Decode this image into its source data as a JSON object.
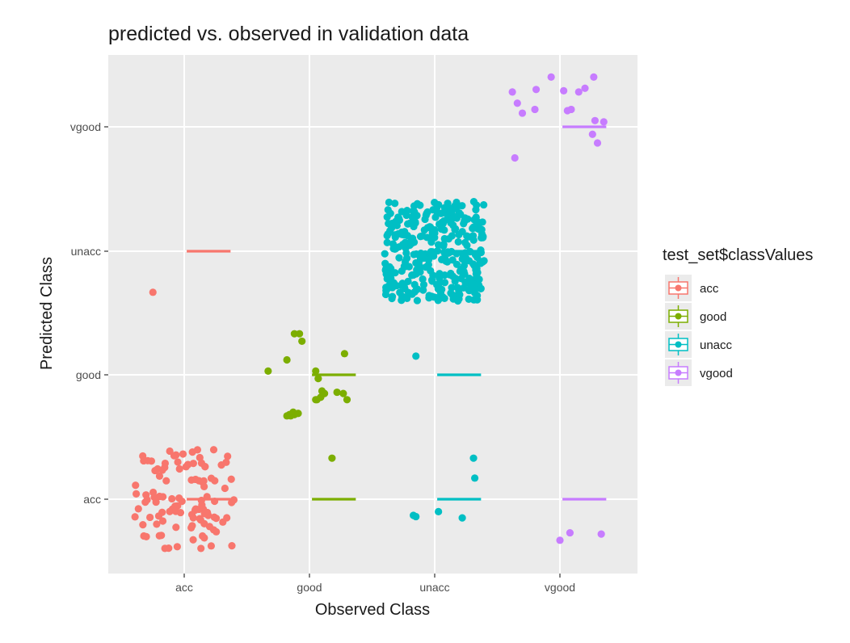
{
  "chart_data": {
    "type": "scatter",
    "title": "predicted vs. observed in validation data",
    "xlabel": "Observed Class",
    "ylabel": "Predicted Class",
    "categories_x": [
      "acc",
      "good",
      "unacc",
      "vgood"
    ],
    "categories_y": [
      "acc",
      "good",
      "unacc",
      "vgood"
    ],
    "legend": {
      "title": "test_set$classValues",
      "placement": "right",
      "entries": [
        "acc",
        "good",
        "unacc",
        "vgood"
      ]
    },
    "colors": {
      "acc": "#F8766D",
      "good": "#7CAE00",
      "unacc": "#00BFC4",
      "vgood": "#C77CFF"
    },
    "grid": true,
    "jitter": "points jittered around category centers",
    "medians": [
      {
        "series": "acc",
        "x": "acc",
        "y": "acc"
      },
      {
        "series": "acc",
        "x": "acc",
        "y": "unacc"
      },
      {
        "series": "good",
        "x": "good",
        "y": "acc"
      },
      {
        "series": "good",
        "x": "good",
        "y": "good"
      },
      {
        "series": "unacc",
        "x": "unacc",
        "y": "acc"
      },
      {
        "series": "unacc",
        "x": "unacc",
        "y": "good"
      },
      {
        "series": "unacc",
        "x": "unacc",
        "y": "unacc"
      },
      {
        "series": "vgood",
        "x": "vgood",
        "y": "acc"
      },
      {
        "series": "vgood",
        "x": "vgood",
        "y": "vgood"
      }
    ],
    "series": [
      {
        "name": "acc",
        "x": "acc",
        "y": "acc",
        "count": 110
      },
      {
        "name": "acc",
        "x": "acc",
        "y": "unacc",
        "count": 1,
        "points": [
          [
            -0.25,
            -0.33
          ]
        ]
      },
      {
        "name": "good",
        "x": "good",
        "y": "acc",
        "count": 1,
        "points": [
          [
            0.18,
            0.33
          ]
        ]
      },
      {
        "name": "good",
        "x": "good",
        "y": "good",
        "count": 22,
        "points": [
          [
            -0.33,
            0.03
          ],
          [
            -0.18,
            0.12
          ],
          [
            -0.12,
            0.33
          ],
          [
            -0.08,
            0.33
          ],
          [
            -0.06,
            0.27
          ],
          [
            0.05,
            0.03
          ],
          [
            0.28,
            0.17
          ],
          [
            0.07,
            -0.03
          ],
          [
            0.1,
            -0.13
          ],
          [
            0.12,
            -0.15
          ],
          [
            0.06,
            -0.2
          ],
          [
            0.22,
            -0.14
          ],
          [
            0.3,
            -0.2
          ],
          [
            0.05,
            -0.2
          ],
          [
            -0.12,
            -0.32
          ],
          [
            -0.15,
            -0.33
          ],
          [
            -0.18,
            -0.33
          ],
          [
            -0.09,
            -0.31
          ],
          [
            -0.13,
            -0.3
          ],
          [
            0.09,
            -0.18
          ],
          [
            0.27,
            -0.15
          ],
          [
            -0.16,
            -0.32
          ]
        ]
      },
      {
        "name": "unacc",
        "x": "unacc",
        "y": "acc",
        "count": 6,
        "points": [
          [
            -0.15,
            -0.14
          ],
          [
            0.03,
            -0.1
          ],
          [
            0.22,
            -0.15
          ],
          [
            0.32,
            0.17
          ],
          [
            0.31,
            0.33
          ],
          [
            -0.17,
            -0.13
          ]
        ]
      },
      {
        "name": "unacc",
        "x": "unacc",
        "y": "good",
        "count": 1,
        "points": [
          [
            -0.15,
            0.15
          ]
        ]
      },
      {
        "name": "unacc",
        "x": "unacc",
        "y": "unacc",
        "count": 330
      },
      {
        "name": "vgood",
        "x": "vgood",
        "y": "acc",
        "count": 3,
        "points": [
          [
            0.0,
            -0.33
          ],
          [
            0.08,
            -0.27
          ],
          [
            0.33,
            -0.28
          ]
        ]
      },
      {
        "name": "vgood",
        "x": "vgood",
        "y": "vgood",
        "count": 17,
        "points": [
          [
            -0.38,
            0.28
          ],
          [
            -0.34,
            0.19
          ],
          [
            -0.3,
            0.11
          ],
          [
            -0.2,
            0.14
          ],
          [
            -0.19,
            0.3
          ],
          [
            -0.07,
            0.4
          ],
          [
            0.03,
            0.29
          ],
          [
            0.06,
            0.13
          ],
          [
            0.09,
            0.14
          ],
          [
            0.15,
            0.28
          ],
          [
            0.27,
            0.4
          ],
          [
            0.2,
            0.31
          ],
          [
            0.28,
            0.05
          ],
          [
            0.35,
            0.04
          ],
          [
            0.3,
            -0.13
          ],
          [
            0.26,
            -0.06
          ],
          [
            -0.36,
            -0.25
          ]
        ]
      }
    ]
  }
}
